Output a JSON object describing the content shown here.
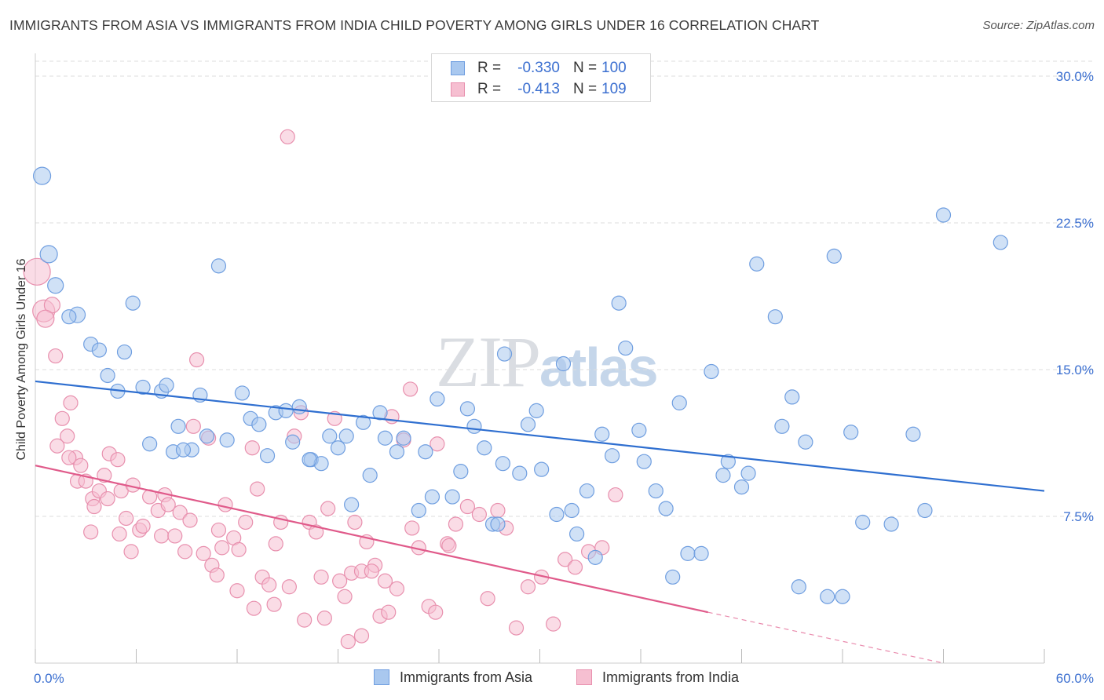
{
  "title": "IMMIGRANTS FROM ASIA VS IMMIGRANTS FROM INDIA CHILD POVERTY AMONG GIRLS UNDER 16 CORRELATION CHART",
  "source": "Source: ZipAtlas.com",
  "watermark": {
    "zip": "ZIP",
    "atlas": "atlas"
  },
  "legend_top": {
    "rows": [
      {
        "r_label": "R =",
        "r_value": "-0.330",
        "n_label": "N =",
        "n_value": "100"
      },
      {
        "r_label": "R =",
        "r_value": "-0.413",
        "n_label": "N =",
        "n_value": "109"
      }
    ]
  },
  "colors": {
    "asia_fill": "#a9c8ef",
    "asia_stroke": "#6f9ee0",
    "asia_line": "#2f6fd0",
    "india_fill": "#f6bfd1",
    "india_stroke": "#e890ae",
    "india_line": "#e05a8a",
    "tick_label": "#3b6fd0",
    "grid": "#dddddd"
  },
  "chart_data": {
    "type": "scatter",
    "title": "IMMIGRANTS FROM ASIA VS IMMIGRANTS FROM INDIA CHILD POVERTY AMONG GIRLS UNDER 16 CORRELATION CHART",
    "xlabel": "",
    "ylabel": "Child Poverty Among Girls Under 16",
    "xlim": [
      0,
      60
    ],
    "ylim": [
      0,
      30.0
    ],
    "x_tick_labels": [
      "0.0%",
      "60.0%"
    ],
    "y_ticks": [
      7.5,
      15.0,
      22.5,
      30.0
    ],
    "y_tick_labels": [
      "7.5%",
      "15.0%",
      "22.5%",
      "30.0%"
    ],
    "grid": "horizontal dashed",
    "legend_position": "top-center",
    "series": [
      {
        "name": "Immigrants from Asia",
        "r": -0.33,
        "n": 100,
        "trend": {
          "x0": 0,
          "y0": 14.4,
          "x1": 60,
          "y1": 8.8
        },
        "points": [
          [
            0.4,
            24.9,
            22
          ],
          [
            0.8,
            20.9,
            22
          ],
          [
            1.2,
            19.3,
            20
          ],
          [
            2.5,
            17.8,
            20
          ],
          [
            2.0,
            17.7,
            18
          ],
          [
            3.3,
            16.3,
            18
          ],
          [
            3.8,
            16.0,
            18
          ],
          [
            5.3,
            15.9,
            18
          ],
          [
            4.3,
            14.7,
            18
          ],
          [
            4.9,
            13.9,
            18
          ],
          [
            5.8,
            18.4,
            18
          ],
          [
            6.4,
            14.1,
            18
          ],
          [
            7.5,
            13.9,
            18
          ],
          [
            7.8,
            14.2,
            18
          ],
          [
            10.9,
            20.3,
            18
          ],
          [
            9.8,
            13.7,
            18
          ],
          [
            8.5,
            12.1,
            18
          ],
          [
            9.3,
            10.9,
            18
          ],
          [
            8.2,
            10.8,
            18
          ],
          [
            6.8,
            11.2,
            18
          ],
          [
            10.2,
            11.6,
            18
          ],
          [
            11.4,
            11.4,
            18
          ],
          [
            12.3,
            13.8,
            18
          ],
          [
            12.8,
            12.5,
            18
          ],
          [
            13.3,
            12.2,
            18
          ],
          [
            13.8,
            10.6,
            18
          ],
          [
            14.3,
            12.8,
            18
          ],
          [
            14.9,
            12.9,
            18
          ],
          [
            15.7,
            13.1,
            18
          ],
          [
            15.3,
            11.3,
            18
          ],
          [
            16.4,
            10.4,
            18
          ],
          [
            17.0,
            10.2,
            18
          ],
          [
            17.5,
            11.6,
            18
          ],
          [
            18.0,
            11.0,
            18
          ],
          [
            18.5,
            11.6,
            18
          ],
          [
            18.8,
            8.1,
            18
          ],
          [
            19.5,
            12.3,
            18
          ],
          [
            19.9,
            9.6,
            18
          ],
          [
            20.5,
            12.8,
            18
          ],
          [
            20.8,
            11.5,
            18
          ],
          [
            21.5,
            10.8,
            18
          ],
          [
            21.9,
            11.5,
            18
          ],
          [
            22.8,
            7.8,
            18
          ],
          [
            23.2,
            10.8,
            18
          ],
          [
            23.6,
            8.5,
            18
          ],
          [
            23.9,
            13.5,
            18
          ],
          [
            24.8,
            8.5,
            18
          ],
          [
            25.3,
            9.8,
            18
          ],
          [
            25.7,
            13.0,
            18
          ],
          [
            26.1,
            12.1,
            18
          ],
          [
            26.7,
            11.0,
            18
          ],
          [
            27.2,
            7.1,
            18
          ],
          [
            27.5,
            7.1,
            18
          ],
          [
            27.9,
            15.8,
            18
          ],
          [
            27.8,
            10.2,
            18
          ],
          [
            28.8,
            9.7,
            18
          ],
          [
            29.3,
            12.2,
            18
          ],
          [
            29.8,
            12.9,
            18
          ],
          [
            30.1,
            9.9,
            18
          ],
          [
            31.0,
            7.6,
            18
          ],
          [
            31.4,
            15.3,
            18
          ],
          [
            31.9,
            7.8,
            18
          ],
          [
            32.2,
            6.6,
            18
          ],
          [
            32.8,
            8.8,
            18
          ],
          [
            33.3,
            5.4,
            18
          ],
          [
            33.7,
            11.7,
            18
          ],
          [
            34.3,
            10.6,
            18
          ],
          [
            34.7,
            18.4,
            18
          ],
          [
            35.1,
            16.1,
            18
          ],
          [
            35.9,
            11.9,
            18
          ],
          [
            36.2,
            10.3,
            18
          ],
          [
            36.9,
            8.8,
            18
          ],
          [
            37.5,
            7.9,
            18
          ],
          [
            37.9,
            4.4,
            18
          ],
          [
            38.3,
            13.3,
            18
          ],
          [
            38.8,
            5.6,
            18
          ],
          [
            39.6,
            5.6,
            18
          ],
          [
            40.2,
            14.9,
            18
          ],
          [
            40.9,
            9.6,
            18
          ],
          [
            41.2,
            10.3,
            18
          ],
          [
            42.0,
            9.0,
            18
          ],
          [
            42.4,
            9.7,
            18
          ],
          [
            42.9,
            20.4,
            18
          ],
          [
            44.0,
            17.7,
            18
          ],
          [
            44.4,
            12.1,
            18
          ],
          [
            45.0,
            13.6,
            18
          ],
          [
            45.4,
            3.9,
            18
          ],
          [
            45.8,
            11.3,
            18
          ],
          [
            47.1,
            3.4,
            18
          ],
          [
            47.5,
            20.8,
            18
          ],
          [
            48.0,
            3.4,
            18
          ],
          [
            48.5,
            11.8,
            18
          ],
          [
            49.2,
            7.2,
            18
          ],
          [
            50.9,
            7.1,
            18
          ],
          [
            52.2,
            11.7,
            18
          ],
          [
            52.9,
            7.8,
            18
          ],
          [
            54.0,
            22.9,
            18
          ],
          [
            57.4,
            21.5,
            18
          ],
          [
            8.8,
            10.9,
            18
          ],
          [
            16.3,
            10.4,
            18
          ]
        ]
      },
      {
        "name": "Immigrants from India",
        "r": -0.413,
        "n": 109,
        "trend": {
          "x0": 0,
          "y0": 10.1,
          "x1": 40,
          "y1": 2.6,
          "dash_to_x": 54,
          "dash_to_y": 0.0
        },
        "points": [
          [
            0.1,
            20.0,
            34
          ],
          [
            0.5,
            18.0,
            28
          ],
          [
            1.0,
            18.3,
            20
          ],
          [
            0.6,
            17.6,
            22
          ],
          [
            1.2,
            15.7,
            18
          ],
          [
            1.6,
            12.5,
            18
          ],
          [
            1.9,
            11.6,
            18
          ],
          [
            2.1,
            13.3,
            18
          ],
          [
            1.3,
            11.1,
            18
          ],
          [
            2.4,
            10.5,
            18
          ],
          [
            2.0,
            10.5,
            18
          ],
          [
            2.7,
            10.1,
            18
          ],
          [
            2.5,
            9.3,
            18
          ],
          [
            3.0,
            9.3,
            18
          ],
          [
            3.4,
            8.4,
            18
          ],
          [
            3.8,
            8.8,
            18
          ],
          [
            4.1,
            9.6,
            18
          ],
          [
            4.4,
            10.7,
            18
          ],
          [
            4.9,
            10.4,
            18
          ],
          [
            5.1,
            8.8,
            18
          ],
          [
            4.3,
            8.4,
            18
          ],
          [
            3.5,
            8.0,
            18
          ],
          [
            3.3,
            6.7,
            18
          ],
          [
            5.4,
            7.4,
            18
          ],
          [
            5.0,
            6.6,
            18
          ],
          [
            5.8,
            9.1,
            18
          ],
          [
            6.2,
            6.8,
            18
          ],
          [
            6.4,
            7.0,
            18
          ],
          [
            5.7,
            5.7,
            18
          ],
          [
            6.8,
            8.5,
            18
          ],
          [
            7.3,
            7.8,
            18
          ],
          [
            7.7,
            8.6,
            18
          ],
          [
            7.9,
            8.1,
            18
          ],
          [
            7.5,
            6.5,
            18
          ],
          [
            8.3,
            6.5,
            18
          ],
          [
            8.6,
            7.7,
            18
          ],
          [
            8.9,
            5.7,
            18
          ],
          [
            9.2,
            7.3,
            18
          ],
          [
            9.6,
            15.5,
            18
          ],
          [
            9.4,
            12.1,
            18
          ],
          [
            10.0,
            5.6,
            18
          ],
          [
            10.3,
            11.5,
            18
          ],
          [
            10.5,
            5.0,
            18
          ],
          [
            10.9,
            6.8,
            18
          ],
          [
            11.3,
            8.1,
            18
          ],
          [
            11.1,
            5.9,
            18
          ],
          [
            11.8,
            6.4,
            18
          ],
          [
            12.1,
            5.8,
            18
          ],
          [
            12.5,
            7.2,
            18
          ],
          [
            12.9,
            11.0,
            18
          ],
          [
            13.2,
            8.9,
            18
          ],
          [
            13.5,
            4.4,
            18
          ],
          [
            13.9,
            4.0,
            18
          ],
          [
            14.3,
            6.1,
            18
          ],
          [
            14.6,
            7.2,
            18
          ],
          [
            15.1,
            3.9,
            18
          ],
          [
            15.4,
            11.6,
            18
          ],
          [
            15.8,
            12.8,
            18
          ],
          [
            16.3,
            7.2,
            18
          ],
          [
            16.7,
            6.7,
            18
          ],
          [
            17.0,
            4.4,
            18
          ],
          [
            17.4,
            7.9,
            18
          ],
          [
            17.8,
            12.5,
            18
          ],
          [
            18.1,
            4.2,
            18
          ],
          [
            18.4,
            3.4,
            18
          ],
          [
            18.8,
            4.6,
            18
          ],
          [
            19.0,
            7.2,
            18
          ],
          [
            19.4,
            4.7,
            18
          ],
          [
            19.7,
            6.2,
            18
          ],
          [
            20.2,
            5.0,
            18
          ],
          [
            20.5,
            2.4,
            18
          ],
          [
            20.8,
            4.2,
            18
          ],
          [
            21.2,
            12.6,
            18
          ],
          [
            21.5,
            3.8,
            18
          ],
          [
            21.9,
            11.4,
            18
          ],
          [
            22.3,
            14.0,
            18
          ],
          [
            22.8,
            5.9,
            18
          ],
          [
            23.4,
            2.9,
            18
          ],
          [
            23.9,
            11.2,
            18
          ],
          [
            24.5,
            6.1,
            18
          ],
          [
            25.0,
            7.1,
            18
          ],
          [
            25.7,
            8.0,
            18
          ],
          [
            26.4,
            7.6,
            18
          ],
          [
            26.9,
            3.3,
            18
          ],
          [
            27.5,
            7.8,
            18
          ],
          [
            28.0,
            6.9,
            18
          ],
          [
            28.6,
            1.8,
            18
          ],
          [
            29.3,
            3.9,
            18
          ],
          [
            30.1,
            4.4,
            18
          ],
          [
            30.8,
            2.0,
            18
          ],
          [
            31.5,
            5.3,
            18
          ],
          [
            32.1,
            4.9,
            18
          ],
          [
            32.9,
            5.7,
            18
          ],
          [
            33.7,
            5.9,
            18
          ],
          [
            34.5,
            8.6,
            18
          ],
          [
            10.8,
            4.5,
            18
          ],
          [
            12.0,
            3.7,
            18
          ],
          [
            13.0,
            2.8,
            18
          ],
          [
            14.2,
            3.0,
            18
          ],
          [
            15.0,
            26.9,
            18
          ],
          [
            16.0,
            2.2,
            18
          ],
          [
            17.2,
            2.3,
            18
          ],
          [
            18.6,
            1.1,
            18
          ],
          [
            19.4,
            1.4,
            18
          ],
          [
            20.0,
            4.7,
            18
          ],
          [
            21.0,
            2.6,
            18
          ],
          [
            22.4,
            6.9,
            18
          ],
          [
            23.8,
            2.6,
            18
          ],
          [
            24.6,
            6.0,
            18
          ]
        ]
      }
    ]
  },
  "legend_bottom": {
    "items": [
      {
        "label": "Immigrants from Asia"
      },
      {
        "label": "Immigrants from India"
      }
    ]
  }
}
